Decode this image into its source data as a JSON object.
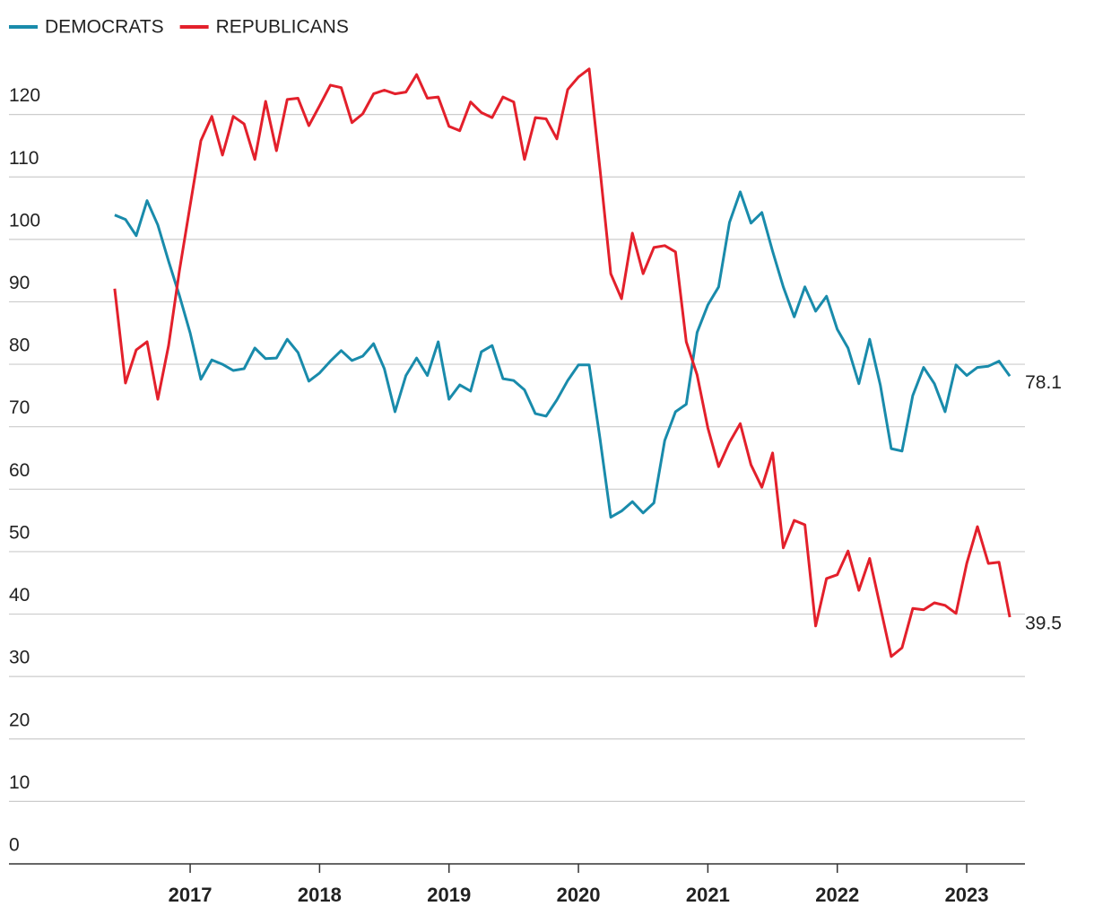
{
  "chart_data": {
    "type": "line",
    "x": [
      2016.417,
      2016.5,
      2016.583,
      2016.667,
      2016.75,
      2016.833,
      2016.917,
      2017,
      2017.083,
      2017.167,
      2017.25,
      2017.333,
      2017.417,
      2017.5,
      2017.583,
      2017.667,
      2017.75,
      2017.833,
      2017.917,
      2018,
      2018.083,
      2018.167,
      2018.25,
      2018.333,
      2018.417,
      2018.5,
      2018.583,
      2018.667,
      2018.75,
      2018.833,
      2018.917,
      2019,
      2019.083,
      2019.167,
      2019.25,
      2019.333,
      2019.417,
      2019.5,
      2019.583,
      2019.667,
      2019.75,
      2019.833,
      2019.917,
      2020,
      2020.083,
      2020.167,
      2020.25,
      2020.333,
      2020.417,
      2020.5,
      2020.583,
      2020.667,
      2020.75,
      2020.833,
      2020.917,
      2021,
      2021.083,
      2021.167,
      2021.25,
      2021.333,
      2021.417,
      2021.5,
      2021.583,
      2021.667,
      2021.75,
      2021.833,
      2021.917,
      2022,
      2022.083,
      2022.167,
      2022.25,
      2022.333,
      2022.417,
      2022.5,
      2022.583,
      2022.667,
      2022.75,
      2022.833,
      2022.917,
      2023,
      2023.083,
      2023.167,
      2023.25,
      2023.333
    ],
    "series": [
      {
        "name": "DEMOCRATS",
        "color": "#198bab",
        "values": [
          103.9,
          103.2,
          100.6,
          106.2,
          102.3,
          96.5,
          91,
          85,
          77.6,
          80.7,
          80.0,
          79.0,
          79.3,
          82.6,
          80.9,
          81.0,
          84.0,
          81.9,
          77.3,
          78.6,
          80.5,
          82.2,
          80.6,
          81.3,
          83.3,
          79.3,
          72.4,
          78.2,
          81.0,
          78.2,
          83.6,
          74.4,
          76.7,
          75.7,
          82.0,
          83.0,
          77.7,
          77.4,
          75.9,
          72.1,
          71.7,
          74.3,
          77.4,
          79.9,
          79.9,
          68.0,
          55.5,
          56.5,
          58.0,
          56.2,
          57.8,
          67.8,
          72.4,
          73.6,
          85.1,
          89.5,
          92.4,
          102.7,
          107.6,
          102.6,
          104.3,
          98.1,
          92.4,
          87.6,
          92.4,
          88.5,
          90.9,
          85.6,
          82.6,
          76.9,
          84.0,
          76.6,
          66.5,
          66.1,
          75.0,
          79.5,
          76.9,
          72.4,
          79.9,
          78.2,
          79.5,
          79.7,
          80.5,
          78.1
        ]
      },
      {
        "name": "REPUBLICANS",
        "color": "#e3202b",
        "values": [
          92.1,
          77.0,
          82.3,
          83.6,
          74.4,
          83,
          95,
          105.5,
          115.8,
          119.7,
          113.5,
          119.7,
          118.5,
          112.8,
          122.1,
          114.2,
          122.4,
          122.6,
          118.2,
          121.4,
          124.7,
          124.3,
          118.7,
          120.1,
          123.3,
          123.9,
          123.3,
          123.6,
          126.4,
          122.6,
          122.8,
          118.1,
          117.4,
          122.0,
          120.3,
          119.5,
          122.8,
          122.0,
          112.8,
          119.5,
          119.3,
          116.1,
          124.0,
          126.0,
          127.3,
          111.1,
          94.5,
          90.5,
          101.0,
          94.5,
          98.7,
          99.0,
          98.0,
          83.6,
          78.3,
          69.8,
          63.6,
          67.5,
          70.5,
          63.9,
          60.3,
          65.8,
          50.6,
          55.0,
          54.3,
          38.1,
          45.7,
          46.3,
          50.1,
          43.8,
          48.9,
          41.1,
          33.2,
          34.6,
          40.9,
          40.7,
          41.8,
          41.4,
          40.1,
          48.1,
          54.0,
          48.1,
          48.3,
          39.5
        ]
      }
    ],
    "xlim": [
      2015.6,
      2023.45
    ],
    "xticks": [
      2017,
      2018,
      2019,
      2020,
      2021,
      2022,
      2023
    ],
    "ylim": [
      0,
      130
    ],
    "yticks": [
      0,
      10,
      20,
      30,
      40,
      50,
      60,
      70,
      80,
      90,
      100,
      110,
      120
    ],
    "grid": true,
    "legend": "top-left"
  }
}
